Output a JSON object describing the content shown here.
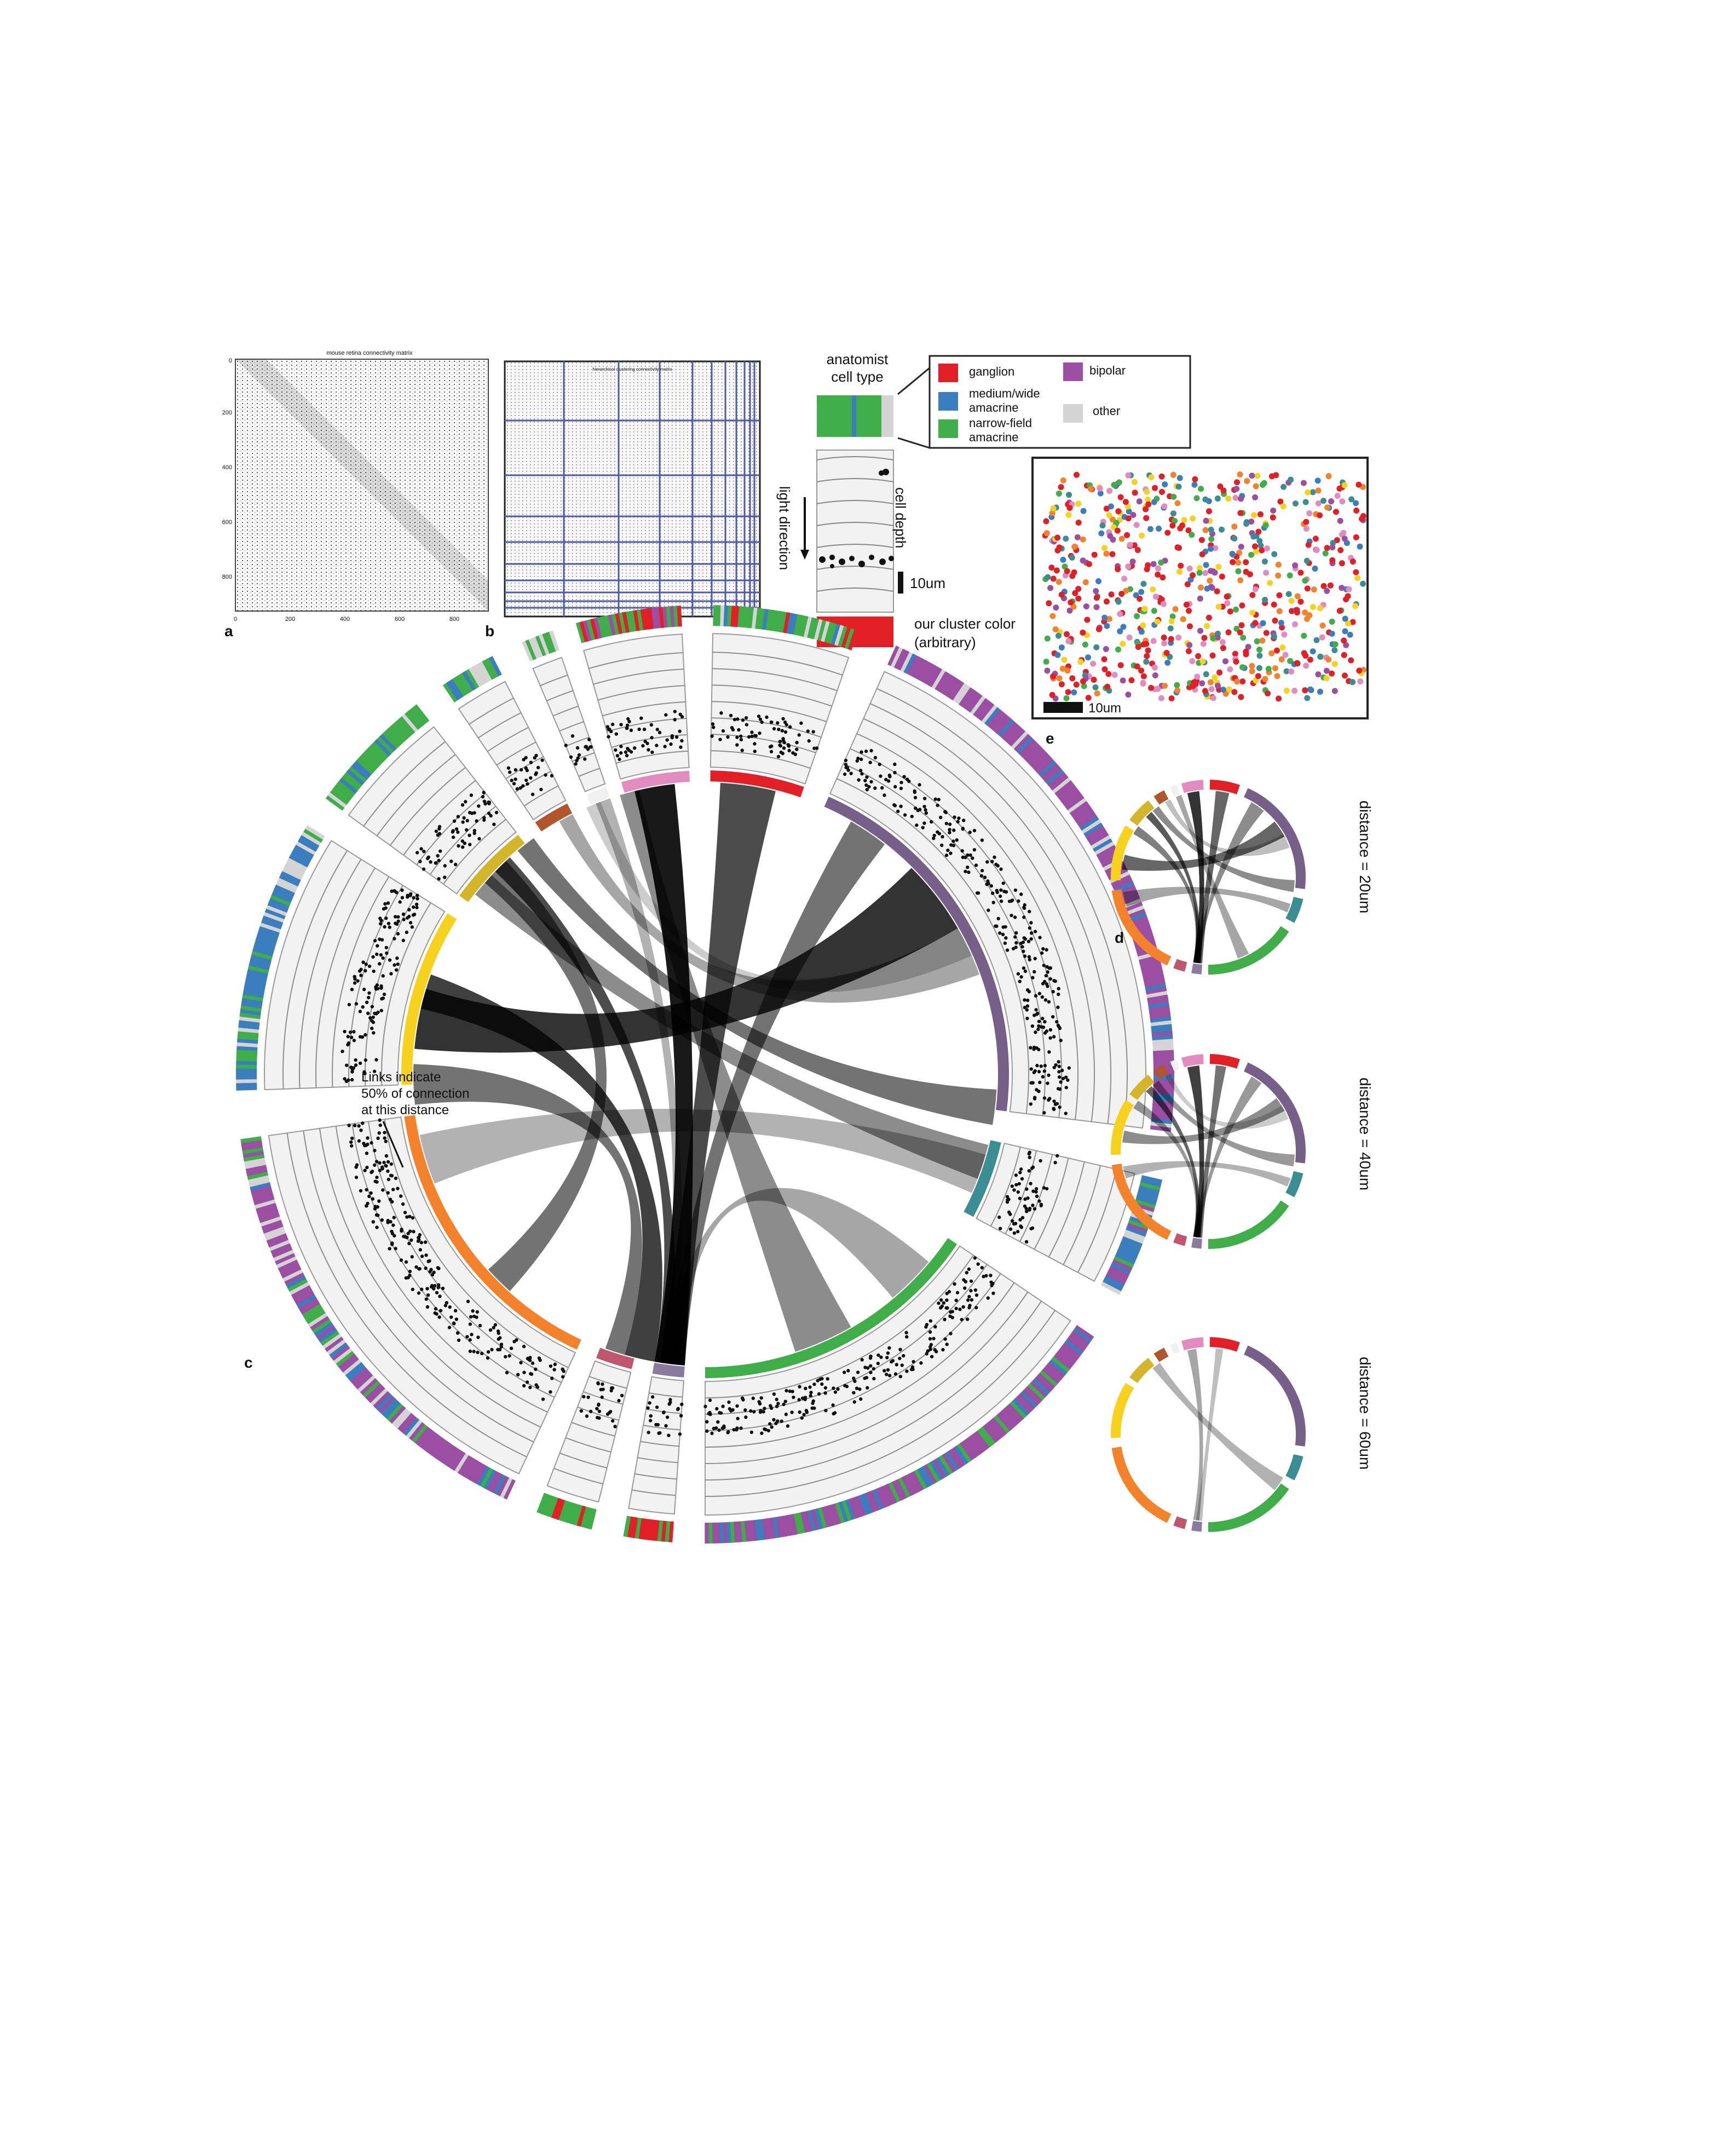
{
  "panels": {
    "a": {
      "letter": "a",
      "title": "mouse retina connectivity matrix",
      "ticks_x": [
        "0",
        "200",
        "400",
        "600",
        "800"
      ],
      "ticks_y": [
        "0",
        "200",
        "400",
        "600",
        "800"
      ]
    },
    "b": {
      "letter": "b",
      "title": "hierarchical clustering connectivity matrix"
    },
    "c": {
      "letter": "c",
      "annotation": [
        "Links indicate",
        "50% of connection",
        "at this distance"
      ]
    },
    "d": {
      "letter": "d",
      "distances": [
        "distance = 20um",
        "distance = 40um",
        "distance = 60um"
      ]
    },
    "e": {
      "letter": "e",
      "scale_label": "10um"
    }
  },
  "legend": {
    "anatomist_title": [
      "anatomist",
      "cell type"
    ],
    "items": [
      {
        "label": "ganglion",
        "color": "#e31f26"
      },
      {
        "label": "medium/wide amacrine",
        "lines": [
          "medium/wide",
          "amacrine"
        ],
        "color": "#3a7ebf"
      },
      {
        "label": "narrow-field amacrine",
        "lines": [
          "narrow-field",
          "amacrine"
        ],
        "color": "#3fae49"
      },
      {
        "label": "bipolar",
        "color": "#9a4fa3"
      },
      {
        "label": "other",
        "color": "#d4d4d4"
      }
    ],
    "cell_depth": "cell depth",
    "light_direction": "light direction",
    "scale_label": "10um",
    "cluster_color": [
      "our cluster color",
      "(arbitrary)"
    ]
  },
  "clusters": [
    {
      "id": "red",
      "color": "#e31f26"
    },
    {
      "id": "purple",
      "color": "#76608a"
    },
    {
      "id": "teal",
      "color": "#3a8d93"
    },
    {
      "id": "green",
      "color": "#3fae49"
    },
    {
      "id": "lavender",
      "color": "#8a7aa0"
    },
    {
      "id": "rose",
      "color": "#c0566e"
    },
    {
      "id": "orange",
      "color": "#f4822a"
    },
    {
      "id": "yellow",
      "color": "#f6d21c"
    },
    {
      "id": "olive",
      "color": "#d4b52a"
    },
    {
      "id": "brown",
      "color": "#b0562a"
    },
    {
      "id": "white",
      "color": "#f0f0f0"
    },
    {
      "id": "pink",
      "color": "#e28bc1"
    }
  ]
}
